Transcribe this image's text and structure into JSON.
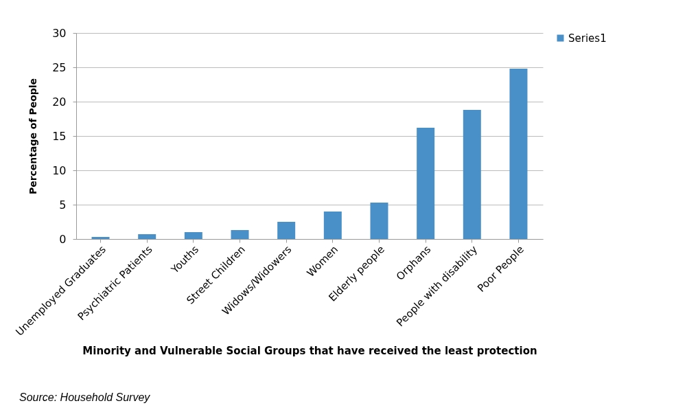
{
  "chart_data": {
    "type": "bar",
    "xlabel": "Minority and Vulnerable Social Groups that have received the least protection",
    "ylabel": "Percentage of People",
    "categories": [
      "Unemployed Graduates",
      "Psychiatric Patients",
      "Youths",
      "Street Children",
      "Widows/Widowers",
      "Women",
      "Elderly people",
      "Orphans",
      "People with disability",
      "Poor People"
    ],
    "series": [
      {
        "name": "Series1",
        "color": "#4a90c8",
        "values": [
          0.3,
          0.7,
          1.0,
          1.3,
          2.5,
          4.0,
          5.3,
          16.2,
          18.8,
          24.8
        ]
      }
    ],
    "ylim": [
      0,
      30
    ],
    "yticks": [
      0,
      5,
      10,
      15,
      20,
      25,
      30
    ],
    "grid": "y",
    "legend": "right",
    "annotations": [
      "Source: Household Survey"
    ]
  }
}
